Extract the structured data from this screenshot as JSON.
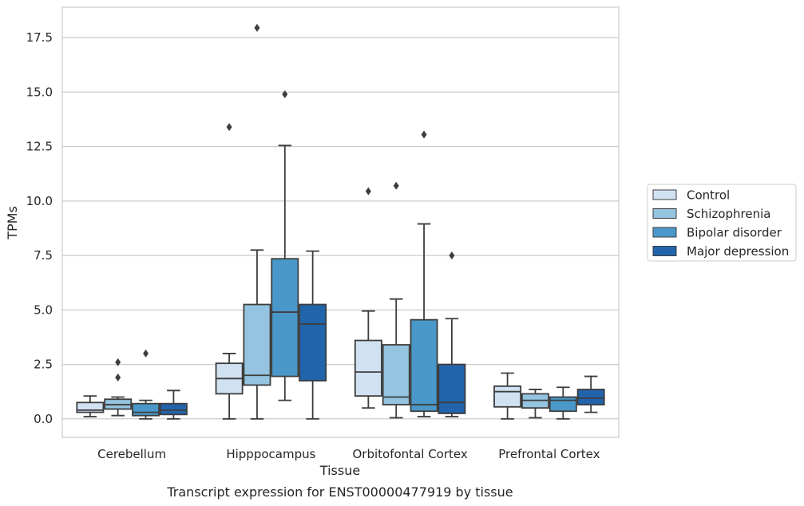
{
  "chart_data": {
    "type": "box",
    "title": "",
    "xlabel": "Tissue",
    "ylabel": "TPMs",
    "caption": "Transcript expression for ENST00000477919 by tissue",
    "categories": [
      "Cerebellum",
      "Hipppocampus",
      "Orbitofontal Cortex",
      "Prefrontal Cortex"
    ],
    "ylim": [
      -0.85,
      18.9
    ],
    "yticks": [
      0.0,
      2.5,
      5.0,
      7.5,
      10.0,
      12.5,
      15.0,
      17.5
    ],
    "ytick_labels": [
      "0.0",
      "2.5",
      "5.0",
      "7.5",
      "10.0",
      "12.5",
      "15.0",
      "17.5"
    ],
    "grid": "horizontal",
    "legend_position": "right",
    "series": [
      {
        "name": "Control",
        "color": "#d0e1f2",
        "boxes": [
          {
            "whislo": 0.1,
            "q1": 0.3,
            "med": 0.4,
            "q3": 0.75,
            "whishi": 1.05,
            "fliers": []
          },
          {
            "whislo": 0.0,
            "q1": 1.15,
            "med": 1.85,
            "q3": 2.55,
            "whishi": 3.0,
            "fliers": [
              13.4
            ]
          },
          {
            "whislo": 0.5,
            "q1": 1.05,
            "med": 2.15,
            "q3": 3.6,
            "whishi": 4.95,
            "fliers": [
              10.45
            ]
          },
          {
            "whislo": 0.0,
            "q1": 0.55,
            "med": 1.25,
            "q3": 1.5,
            "whishi": 2.1,
            "fliers": []
          }
        ]
      },
      {
        "name": "Schizophrenia",
        "color": "#94c4df",
        "boxes": [
          {
            "whislo": 0.15,
            "q1": 0.45,
            "med": 0.65,
            "q3": 0.9,
            "whishi": 1.0,
            "fliers": [
              1.9,
              2.6
            ]
          },
          {
            "whislo": 0.0,
            "q1": 1.55,
            "med": 2.0,
            "q3": 5.25,
            "whishi": 7.75,
            "fliers": [
              17.95
            ]
          },
          {
            "whislo": 0.05,
            "q1": 0.65,
            "med": 1.0,
            "q3": 3.4,
            "whishi": 5.5,
            "fliers": [
              10.7
            ]
          },
          {
            "whislo": 0.05,
            "q1": 0.5,
            "med": 0.85,
            "q3": 1.15,
            "whishi": 1.35,
            "fliers": []
          }
        ]
      },
      {
        "name": "Bipolar disorder",
        "color": "#4a98c9",
        "boxes": [
          {
            "whislo": 0.0,
            "q1": 0.15,
            "med": 0.3,
            "q3": 0.7,
            "whishi": 0.85,
            "fliers": [
              3.0
            ]
          },
          {
            "whislo": 0.85,
            "q1": 1.95,
            "med": 4.9,
            "q3": 7.35,
            "whishi": 12.55,
            "fliers": [
              14.9
            ]
          },
          {
            "whislo": 0.1,
            "q1": 0.35,
            "med": 0.65,
            "q3": 4.55,
            "whishi": 8.95,
            "fliers": [
              13.05
            ]
          },
          {
            "whislo": 0.0,
            "q1": 0.35,
            "med": 0.85,
            "q3": 1.0,
            "whishi": 1.45,
            "fliers": []
          }
        ]
      },
      {
        "name": "Major depression",
        "color": "#2164ab",
        "boxes": [
          {
            "whislo": 0.0,
            "q1": 0.2,
            "med": 0.4,
            "q3": 0.7,
            "whishi": 1.3,
            "fliers": []
          },
          {
            "whislo": 0.0,
            "q1": 1.75,
            "med": 4.35,
            "q3": 5.25,
            "whishi": 7.7,
            "fliers": []
          },
          {
            "whislo": 0.1,
            "q1": 0.25,
            "med": 0.75,
            "q3": 2.5,
            "whishi": 4.6,
            "fliers": [
              7.5
            ]
          },
          {
            "whislo": 0.3,
            "q1": 0.65,
            "med": 0.95,
            "q3": 1.35,
            "whishi": 1.95,
            "fliers": []
          }
        ]
      }
    ]
  }
}
